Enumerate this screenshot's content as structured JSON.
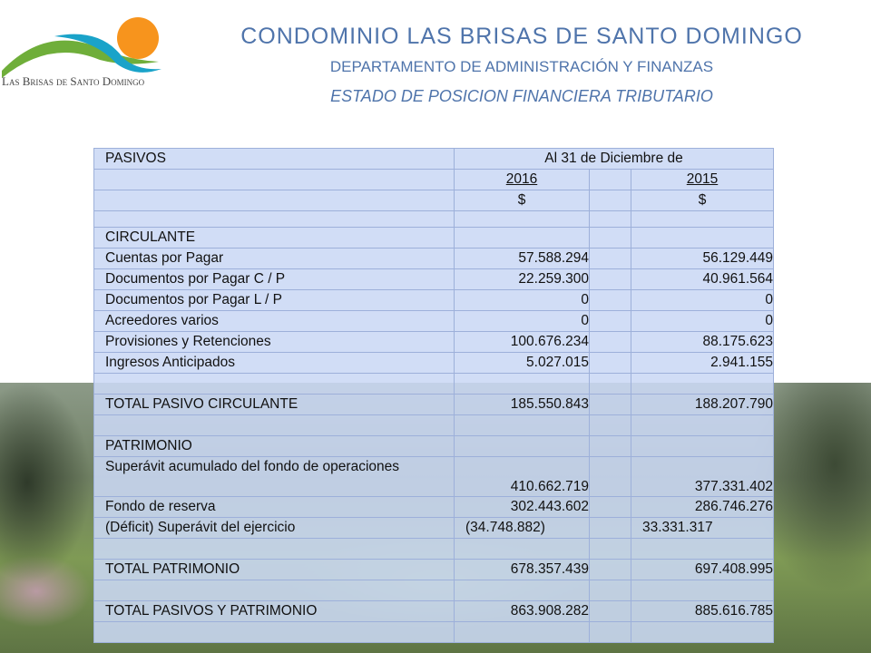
{
  "header": {
    "brand": "Las Brisas de Santo Domingo",
    "title": "CONDOMINIO LAS  BRISAS DE SANTO DOMINGO",
    "department": "DEPARTAMENTO  DE ADMINISTRACIÓN  Y FINANZAS",
    "statement": "ESTADO DE POSICION  FINANCIERA TRIBUTARIO"
  },
  "table": {
    "heading": "PASIVOS",
    "period": "Al 31 de Diciembre de",
    "years": [
      "2016",
      "2015"
    ],
    "currency": [
      "$",
      "$"
    ],
    "rows": [
      {
        "label": "CIRCULANTE"
      },
      {
        "label": "Cuentas por Pagar",
        "y2016": "57.588.294",
        "y2015": "56.129.449"
      },
      {
        "label": "Documentos por Pagar C / P",
        "y2016": "22.259.300",
        "y2015": "40.961.564"
      },
      {
        "label": "Documentos por Pagar L / P",
        "y2016": "0",
        "y2015": "0"
      },
      {
        "label": "Acreedores varios",
        "y2016": "0",
        "y2015": "0"
      },
      {
        "label": "Provisiones y Retenciones",
        "y2016": "100.676.234",
        "y2015": "88.175.623"
      },
      {
        "label": "Ingresos Anticipados",
        "y2016": "5.027.015",
        "y2015": "2.941.155"
      },
      {
        "label": "TOTAL PASIVO CIRCULANTE",
        "y2016": "185.550.843",
        "y2015": "188.207.790"
      },
      {
        "label": "PATRIMONIO"
      },
      {
        "label": "Superávit acumulado del fondo de operaciones",
        "y2016": "410.662.719",
        "y2015": "377.331.402"
      },
      {
        "label": "Fondo de reserva",
        "y2016": "302.443.602",
        "y2015": "286.746.276"
      },
      {
        "label": "(Déficit) Superávit del ejercicio",
        "y2016": "(34.748.882)",
        "y2015": "33.331.317"
      },
      {
        "label": "TOTAL PATRIMONIO",
        "y2016": "678.357.439",
        "y2015": "697.408.995"
      },
      {
        "label": "TOTAL PASIVOS Y PATRIMONIO",
        "y2016": "863.908.282",
        "y2015": "885.616.785"
      }
    ]
  }
}
